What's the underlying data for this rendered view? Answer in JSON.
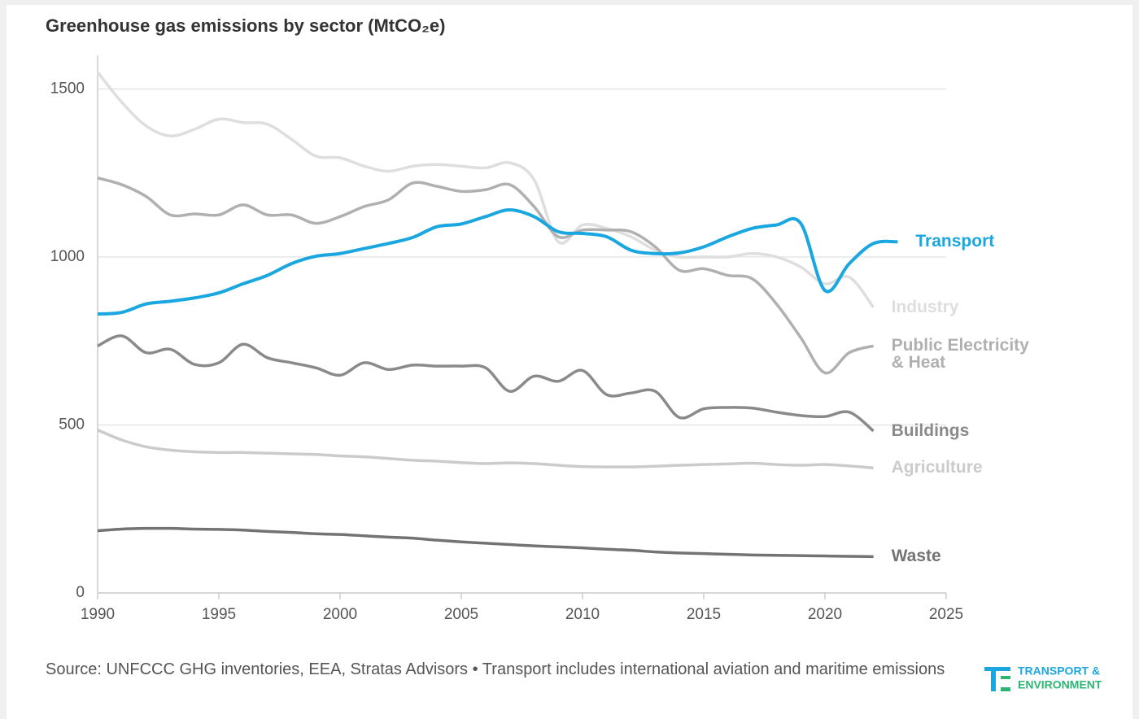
{
  "chart_data": {
    "type": "line",
    "title": "Greenhouse gas emissions by sector (MtCO₂e)",
    "source": "Source: UNFCCC GHG inventories, EEA, Stratas Advisors • Transport includes international aviation and maritime emissions",
    "logo": [
      "TRANSPORT &",
      "ENVIRONMENT"
    ],
    "x": [
      1990,
      1991,
      1992,
      1993,
      1994,
      1995,
      1996,
      1997,
      1998,
      1999,
      2000,
      2001,
      2002,
      2003,
      2004,
      2005,
      2006,
      2007,
      2008,
      2009,
      2010,
      2011,
      2012,
      2013,
      2014,
      2015,
      2016,
      2017,
      2018,
      2019,
      2020,
      2021,
      2022,
      2023
    ],
    "xlim": [
      1990,
      2025
    ],
    "xticks": [
      1990,
      1995,
      2000,
      2005,
      2010,
      2015,
      2020,
      2025
    ],
    "ylim": [
      0,
      1600
    ],
    "yticks": [
      0,
      500,
      1000,
      1500
    ],
    "grid": true,
    "series": [
      {
        "name": "Industry",
        "color": "#dedede",
        "values": [
          1550,
          1460,
          1390,
          1360,
          1380,
          1410,
          1400,
          1395,
          1350,
          1300,
          1295,
          1270,
          1255,
          1270,
          1275,
          1270,
          1265,
          1280,
          1230,
          1045,
          1095,
          1085,
          1060,
          1020,
          1000,
          1000,
          1000,
          1010,
          1000,
          970,
          920,
          940,
          850,
          null
        ]
      },
      {
        "name": "Agriculture",
        "color": "#cbcbcb",
        "values": [
          485,
          455,
          435,
          425,
          420,
          418,
          418,
          416,
          414,
          412,
          408,
          405,
          400,
          395,
          392,
          388,
          385,
          387,
          385,
          380,
          376,
          375,
          375,
          377,
          380,
          382,
          384,
          386,
          382,
          380,
          382,
          378,
          372,
          null
        ]
      },
      {
        "name": "Public Electricity & Heat",
        "color": "#b0b0b0",
        "values": [
          1235,
          1215,
          1180,
          1125,
          1128,
          1125,
          1155,
          1125,
          1125,
          1100,
          1120,
          1150,
          1170,
          1220,
          1210,
          1195,
          1200,
          1215,
          1150,
          1060,
          1080,
          1080,
          1075,
          1030,
          960,
          965,
          945,
          935,
          860,
          760,
          655,
          715,
          735,
          null
        ]
      },
      {
        "name": "Buildings",
        "color": "#8a8a8a",
        "values": [
          735,
          765,
          715,
          725,
          680,
          685,
          740,
          700,
          685,
          670,
          648,
          685,
          665,
          678,
          675,
          675,
          670,
          600,
          645,
          630,
          662,
          590,
          595,
          600,
          522,
          548,
          552,
          550,
          538,
          528,
          525,
          538,
          482,
          null
        ]
      },
      {
        "name": "Waste",
        "color": "#737373",
        "values": [
          185,
          190,
          192,
          192,
          190,
          189,
          187,
          183,
          180,
          176,
          174,
          170,
          166,
          163,
          157,
          152,
          148,
          144,
          140,
          137,
          134,
          130,
          127,
          122,
          119,
          117,
          115,
          113,
          112,
          111,
          110,
          109,
          108,
          null
        ]
      },
      {
        "name": "Transport",
        "color": "#1aa7e0",
        "values": [
          830,
          835,
          860,
          868,
          878,
          893,
          920,
          945,
          980,
          1002,
          1010,
          1025,
          1040,
          1058,
          1090,
          1098,
          1120,
          1140,
          1120,
          1075,
          1070,
          1060,
          1020,
          1010,
          1012,
          1030,
          1060,
          1085,
          1095,
          1100,
          900,
          980,
          1040,
          1045
        ]
      }
    ]
  }
}
